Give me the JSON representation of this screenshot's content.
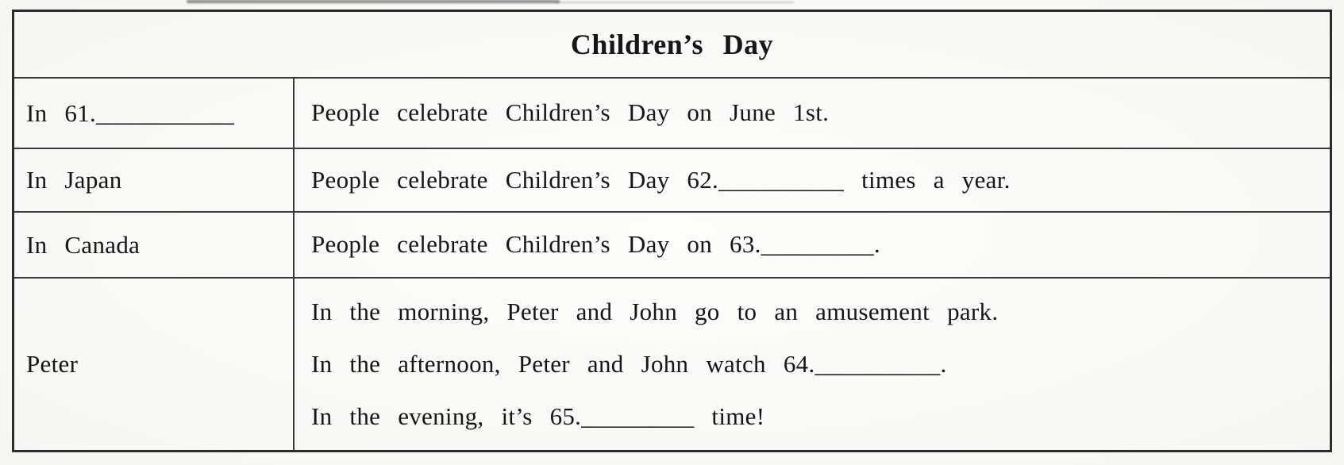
{
  "page": {
    "paper_color": "#fafaf7",
    "text_color": "#161616",
    "border_color": "#2b2b2b"
  },
  "table": {
    "title": "Children’s Day",
    "rows": [
      {
        "left": "In 61.___________",
        "lines": [
          "People celebrate Children’s Day on June 1st."
        ]
      },
      {
        "left": "In Japan",
        "lines": [
          "People celebrate Children’s Day 62.__________ times a year."
        ]
      },
      {
        "left": "In Canada",
        "lines": [
          "People celebrate Children’s Day on 63._________."
        ]
      },
      {
        "left": "Peter",
        "lines": [
          "In the morning, Peter and John go to an amusement park.",
          "In the afternoon, Peter and John watch 64.__________.",
          "In the evening, it’s 65._________ time!"
        ]
      }
    ]
  }
}
